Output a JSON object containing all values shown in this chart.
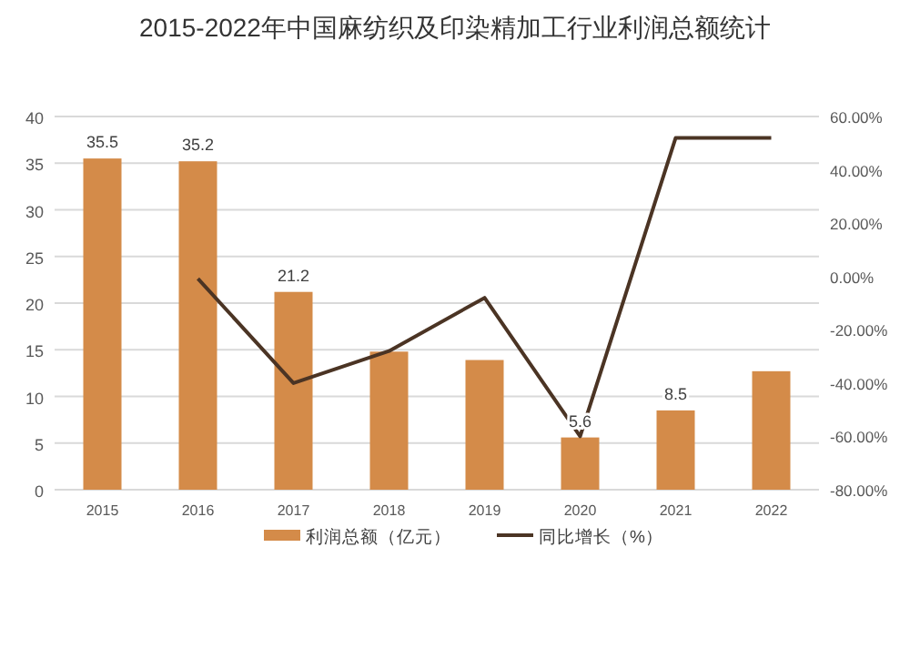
{
  "chart_data": {
    "type": "bar",
    "title": "2015-2022年中国麻纺织及印染精加工行业利润总额统计",
    "categories": [
      "2015",
      "2016",
      "2017",
      "2018",
      "2019",
      "2020",
      "2021",
      "2022"
    ],
    "series": [
      {
        "name": "利润总额（亿元）",
        "color": "#d48b49",
        "values": [
          35.5,
          35.2,
          21.2,
          14.8,
          13.9,
          5.6,
          8.5,
          12.7
        ],
        "value_labels": [
          "35.5",
          "35.2",
          "21.2",
          null,
          null,
          "5.6",
          "8.5",
          null
        ]
      },
      {
        "name": "同比增长（%）",
        "type": "line",
        "axis": "y2",
        "color": "#4b3424",
        "values": [
          null,
          -0.8,
          -40,
          -28,
          -8,
          -60,
          52,
          52
        ]
      }
    ],
    "ylim": [
      0,
      40
    ],
    "yticks": [
      0,
      5,
      10,
      15,
      20,
      25,
      30,
      35,
      40
    ],
    "y2lim": [
      -80,
      60
    ],
    "y2ticks": [
      {
        "value": 60,
        "label": "60.00%"
      },
      {
        "value": 40,
        "label": "40.00%"
      },
      {
        "value": 20,
        "label": "20.00%"
      },
      {
        "value": 0,
        "label": "0.00%"
      },
      {
        "value": -20,
        "label": "-20.00%"
      },
      {
        "value": -40,
        "label": "-40.00%"
      },
      {
        "value": -60,
        "label": "-60.00%"
      },
      {
        "value": -80,
        "label": "-80.00%"
      }
    ],
    "grid": "y",
    "legend": "bottom"
  }
}
